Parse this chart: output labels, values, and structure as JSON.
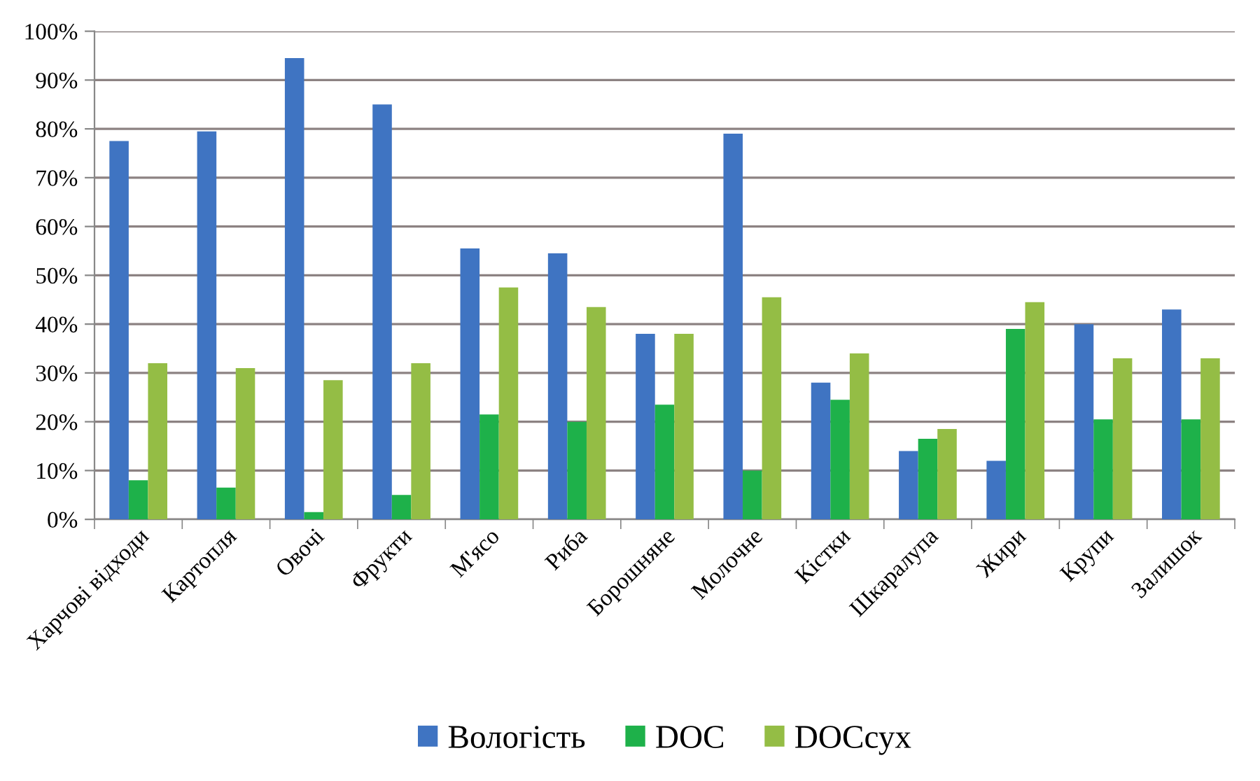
{
  "chart_data": {
    "type": "bar",
    "categories": [
      "Харчові відходи",
      "Картопля",
      "Овочі",
      "Фрукти",
      "М'ясо",
      "Риба",
      "Борошняне",
      "Молочне",
      "Кістки",
      "Шкаралупа",
      "Жири",
      "Крупи",
      "Залишок"
    ],
    "series": [
      {
        "name": "Вологість",
        "color": "#3f74c2",
        "values": [
          77.5,
          79.5,
          94.5,
          85,
          55.5,
          54.5,
          38,
          79,
          28,
          14,
          12,
          40,
          43
        ]
      },
      {
        "name": "DOC",
        "color": "#1eb14a",
        "values": [
          8,
          6.5,
          1.5,
          5,
          21.5,
          20,
          23.5,
          10,
          24.5,
          16.5,
          39,
          20.5,
          20.5
        ]
      },
      {
        "name": "DOCсух",
        "color": "#94bd45",
        "values": [
          32,
          31,
          28.5,
          32,
          47.5,
          43.5,
          38,
          45.5,
          34,
          18.5,
          44.5,
          33,
          33
        ]
      }
    ],
    "ylim": [
      0,
      100
    ],
    "yticks": [
      {
        "value": 0,
        "label": "0%"
      },
      {
        "value": 10,
        "label": "10%"
      },
      {
        "value": 20,
        "label": "20%"
      },
      {
        "value": 30,
        "label": "30%"
      },
      {
        "value": 40,
        "label": "40%"
      },
      {
        "value": 50,
        "label": "50%"
      },
      {
        "value": 60,
        "label": "60%"
      },
      {
        "value": 70,
        "label": "70%"
      },
      {
        "value": 80,
        "label": "80%"
      },
      {
        "value": 90,
        "label": "90%"
      },
      {
        "value": 100,
        "label": "100%"
      }
    ],
    "grid": "y",
    "legend": "bottom"
  }
}
